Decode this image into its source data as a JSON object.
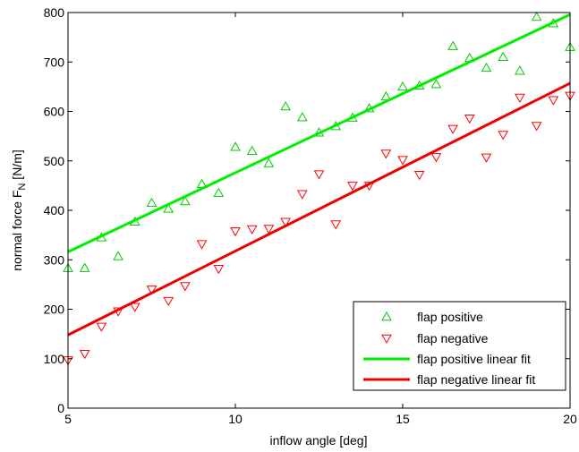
{
  "chart_data": {
    "type": "scatter",
    "xlabel": "inflow angle [deg]",
    "ylabel": {
      "main": "normal force F",
      "sub": "N",
      "unit": " [N/m]"
    },
    "xlim": [
      5,
      20
    ],
    "ylim": [
      0,
      800
    ],
    "xticks": [
      5,
      10,
      15,
      20
    ],
    "yticks": [
      0,
      100,
      200,
      300,
      400,
      500,
      600,
      700,
      800
    ],
    "grid": false,
    "legend_position": "bottom-right",
    "series": [
      {
        "name": "flap positive",
        "marker": "triangle-up",
        "color": "#00cc00",
        "x": [
          5,
          5.5,
          6,
          6.5,
          7,
          7.5,
          8,
          8.5,
          9,
          9.5,
          10,
          10.5,
          11,
          11.5,
          12,
          12.5,
          13,
          13.5,
          14,
          14.5,
          15,
          15.5,
          16,
          16.5,
          17,
          17.5,
          18,
          18.5,
          19,
          19.5,
          20
        ],
        "y": [
          283,
          283,
          345,
          307,
          377,
          415,
          403,
          418,
          453,
          435,
          528,
          520,
          495,
          610,
          588,
          557,
          570,
          587,
          606,
          630,
          650,
          652,
          655,
          732,
          708,
          688,
          710,
          682,
          791,
          778,
          730
        ]
      },
      {
        "name": "flap negative",
        "marker": "triangle-down",
        "color": "#ff0000",
        "x": [
          5,
          5.5,
          6,
          6.5,
          7,
          7.5,
          8,
          8.5,
          9,
          9.5,
          10,
          10.5,
          11,
          11.5,
          12,
          12.5,
          13,
          13.5,
          14,
          14.5,
          15,
          15.5,
          16,
          16.5,
          17,
          17.5,
          18,
          18.5,
          19,
          19.5,
          20
        ],
        "y": [
          97,
          110,
          165,
          196,
          205,
          240,
          217,
          247,
          332,
          282,
          358,
          362,
          363,
          377,
          433,
          473,
          372,
          450,
          450,
          515,
          502,
          472,
          508,
          565,
          586,
          507,
          553,
          628,
          571,
          623,
          632
        ]
      },
      {
        "name": "flap positive linear fit",
        "type": "line",
        "color": "#00ee00",
        "x": [
          5,
          20
        ],
        "y": [
          316,
          796
        ]
      },
      {
        "name": "flap negative linear fit",
        "type": "line",
        "color": "#ee0000",
        "x": [
          5,
          20
        ],
        "y": [
          148,
          657
        ]
      }
    ]
  }
}
